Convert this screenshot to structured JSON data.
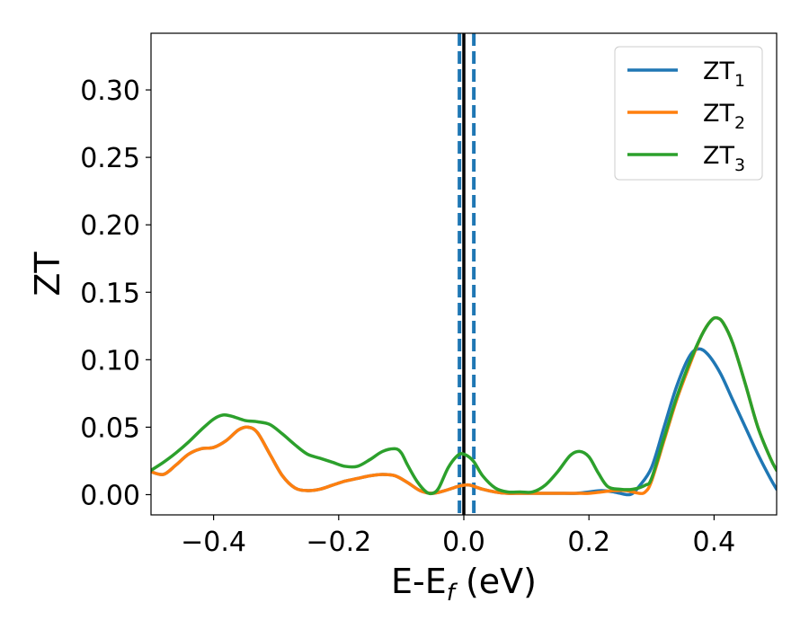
{
  "chart_data": {
    "type": "line",
    "xlabel": "E-E",
    "xlabel_sub": "f",
    "xlabel_unit": " (eV)",
    "ylabel": "ZT",
    "xlim": [
      -0.5,
      0.5
    ],
    "ylim": [
      -0.015,
      0.342
    ],
    "xticks": [
      -0.4,
      -0.2,
      0.0,
      0.2,
      0.4
    ],
    "xtick_labels": [
      "−0.4",
      "−0.2",
      "0.0",
      "0.2",
      "0.4"
    ],
    "yticks": [
      0.0,
      0.05,
      0.1,
      0.15,
      0.2,
      0.25,
      0.3
    ],
    "ytick_labels": [
      "0.00",
      "0.05",
      "0.10",
      "0.15",
      "0.20",
      "0.25",
      "0.30"
    ],
    "grid": false,
    "legend_position": "top-right",
    "vlines": [
      {
        "x": 0.0,
        "color": "#000000",
        "style": "solid"
      },
      {
        "x": -0.007,
        "color": "#1f77b4",
        "style": "dashed"
      },
      {
        "x": 0.016,
        "color": "#1f77b4",
        "style": "dashed"
      }
    ],
    "series": [
      {
        "name": "ZT",
        "name_sub": "1",
        "color": "#1f77b4",
        "points": [
          [
            -0.5,
            0.017
          ],
          [
            -0.48,
            0.015
          ],
          [
            -0.46,
            0.022
          ],
          [
            -0.44,
            0.03
          ],
          [
            -0.42,
            0.034
          ],
          [
            -0.4,
            0.035
          ],
          [
            -0.38,
            0.04
          ],
          [
            -0.36,
            0.048
          ],
          [
            -0.345,
            0.05
          ],
          [
            -0.33,
            0.046
          ],
          [
            -0.31,
            0.03
          ],
          [
            -0.29,
            0.014
          ],
          [
            -0.27,
            0.005
          ],
          [
            -0.25,
            0.003
          ],
          [
            -0.23,
            0.004
          ],
          [
            -0.21,
            0.007
          ],
          [
            -0.19,
            0.01
          ],
          [
            -0.17,
            0.012
          ],
          [
            -0.15,
            0.014
          ],
          [
            -0.13,
            0.015
          ],
          [
            -0.11,
            0.014
          ],
          [
            -0.09,
            0.009
          ],
          [
            -0.07,
            0.003
          ],
          [
            -0.05,
            0.001
          ],
          [
            -0.03,
            0.003
          ],
          [
            -0.01,
            0.006
          ],
          [
            0.0,
            0.007
          ],
          [
            0.01,
            0.007
          ],
          [
            0.03,
            0.004
          ],
          [
            0.05,
            0.002
          ],
          [
            0.07,
            0.001
          ],
          [
            0.09,
            0.001
          ],
          [
            0.12,
            0.001
          ],
          [
            0.15,
            0.001
          ],
          [
            0.18,
            0.001
          ],
          [
            0.2,
            0.002
          ],
          [
            0.22,
            0.003
          ],
          [
            0.24,
            0.002
          ],
          [
            0.26,
            0.0
          ],
          [
            0.27,
            0.001
          ],
          [
            0.28,
            0.006
          ],
          [
            0.3,
            0.02
          ],
          [
            0.32,
            0.05
          ],
          [
            0.34,
            0.08
          ],
          [
            0.36,
            0.102
          ],
          [
            0.375,
            0.108
          ],
          [
            0.39,
            0.104
          ],
          [
            0.41,
            0.09
          ],
          [
            0.43,
            0.07
          ],
          [
            0.45,
            0.05
          ],
          [
            0.47,
            0.03
          ],
          [
            0.49,
            0.012
          ],
          [
            0.5,
            0.004
          ]
        ]
      },
      {
        "name": "ZT",
        "name_sub": "2",
        "color": "#ff7f0e",
        "points": [
          [
            -0.5,
            0.017
          ],
          [
            -0.48,
            0.015
          ],
          [
            -0.46,
            0.022
          ],
          [
            -0.44,
            0.03
          ],
          [
            -0.42,
            0.034
          ],
          [
            -0.4,
            0.035
          ],
          [
            -0.38,
            0.04
          ],
          [
            -0.36,
            0.048
          ],
          [
            -0.345,
            0.05
          ],
          [
            -0.33,
            0.046
          ],
          [
            -0.31,
            0.03
          ],
          [
            -0.29,
            0.014
          ],
          [
            -0.27,
            0.005
          ],
          [
            -0.25,
            0.003
          ],
          [
            -0.23,
            0.004
          ],
          [
            -0.21,
            0.007
          ],
          [
            -0.19,
            0.01
          ],
          [
            -0.17,
            0.012
          ],
          [
            -0.15,
            0.014
          ],
          [
            -0.13,
            0.015
          ],
          [
            -0.11,
            0.014
          ],
          [
            -0.09,
            0.009
          ],
          [
            -0.07,
            0.003
          ],
          [
            -0.05,
            0.001
          ],
          [
            -0.03,
            0.003
          ],
          [
            -0.01,
            0.006
          ],
          [
            0.0,
            0.007
          ],
          [
            0.01,
            0.007
          ],
          [
            0.03,
            0.004
          ],
          [
            0.05,
            0.002
          ],
          [
            0.07,
            0.001
          ],
          [
            0.09,
            0.001
          ],
          [
            0.12,
            0.001
          ],
          [
            0.15,
            0.001
          ],
          [
            0.18,
            0.001
          ],
          [
            0.2,
            0.001
          ],
          [
            0.22,
            0.002
          ],
          [
            0.24,
            0.003
          ],
          [
            0.26,
            0.003
          ],
          [
            0.28,
            0.001
          ],
          [
            0.29,
            0.002
          ],
          [
            0.3,
            0.01
          ],
          [
            0.32,
            0.04
          ],
          [
            0.34,
            0.07
          ],
          [
            0.36,
            0.095
          ],
          [
            0.38,
            0.118
          ],
          [
            0.395,
            0.129
          ],
          [
            0.405,
            0.131
          ],
          [
            0.415,
            0.127
          ],
          [
            0.43,
            0.112
          ],
          [
            0.45,
            0.082
          ],
          [
            0.47,
            0.05
          ],
          [
            0.49,
            0.027
          ],
          [
            0.5,
            0.018
          ]
        ]
      },
      {
        "name": "ZT",
        "name_sub": "3",
        "color": "#2ca02c",
        "points": [
          [
            -0.5,
            0.018
          ],
          [
            -0.48,
            0.024
          ],
          [
            -0.46,
            0.031
          ],
          [
            -0.44,
            0.039
          ],
          [
            -0.42,
            0.048
          ],
          [
            -0.4,
            0.056
          ],
          [
            -0.385,
            0.059
          ],
          [
            -0.37,
            0.058
          ],
          [
            -0.35,
            0.055
          ],
          [
            -0.33,
            0.054
          ],
          [
            -0.31,
            0.052
          ],
          [
            -0.29,
            0.045
          ],
          [
            -0.27,
            0.037
          ],
          [
            -0.25,
            0.03
          ],
          [
            -0.23,
            0.027
          ],
          [
            -0.21,
            0.024
          ],
          [
            -0.19,
            0.021
          ],
          [
            -0.17,
            0.021
          ],
          [
            -0.15,
            0.026
          ],
          [
            -0.13,
            0.032
          ],
          [
            -0.11,
            0.034
          ],
          [
            -0.1,
            0.031
          ],
          [
            -0.09,
            0.022
          ],
          [
            -0.075,
            0.01
          ],
          [
            -0.06,
            0.002
          ],
          [
            -0.05,
            0.001
          ],
          [
            -0.04,
            0.005
          ],
          [
            -0.025,
            0.02
          ],
          [
            -0.01,
            0.029
          ],
          [
            0.0,
            0.03
          ],
          [
            0.015,
            0.025
          ],
          [
            0.03,
            0.014
          ],
          [
            0.05,
            0.005
          ],
          [
            0.07,
            0.002
          ],
          [
            0.09,
            0.002
          ],
          [
            0.11,
            0.002
          ],
          [
            0.13,
            0.007
          ],
          [
            0.15,
            0.017
          ],
          [
            0.17,
            0.029
          ],
          [
            0.185,
            0.032
          ],
          [
            0.2,
            0.028
          ],
          [
            0.215,
            0.016
          ],
          [
            0.23,
            0.006
          ],
          [
            0.25,
            0.004
          ],
          [
            0.27,
            0.004
          ],
          [
            0.29,
            0.007
          ],
          [
            0.3,
            0.012
          ],
          [
            0.32,
            0.042
          ],
          [
            0.34,
            0.072
          ],
          [
            0.36,
            0.097
          ],
          [
            0.38,
            0.118
          ],
          [
            0.395,
            0.129
          ],
          [
            0.405,
            0.131
          ],
          [
            0.415,
            0.127
          ],
          [
            0.43,
            0.112
          ],
          [
            0.45,
            0.082
          ],
          [
            0.47,
            0.05
          ],
          [
            0.49,
            0.027
          ],
          [
            0.5,
            0.018
          ]
        ]
      }
    ]
  }
}
